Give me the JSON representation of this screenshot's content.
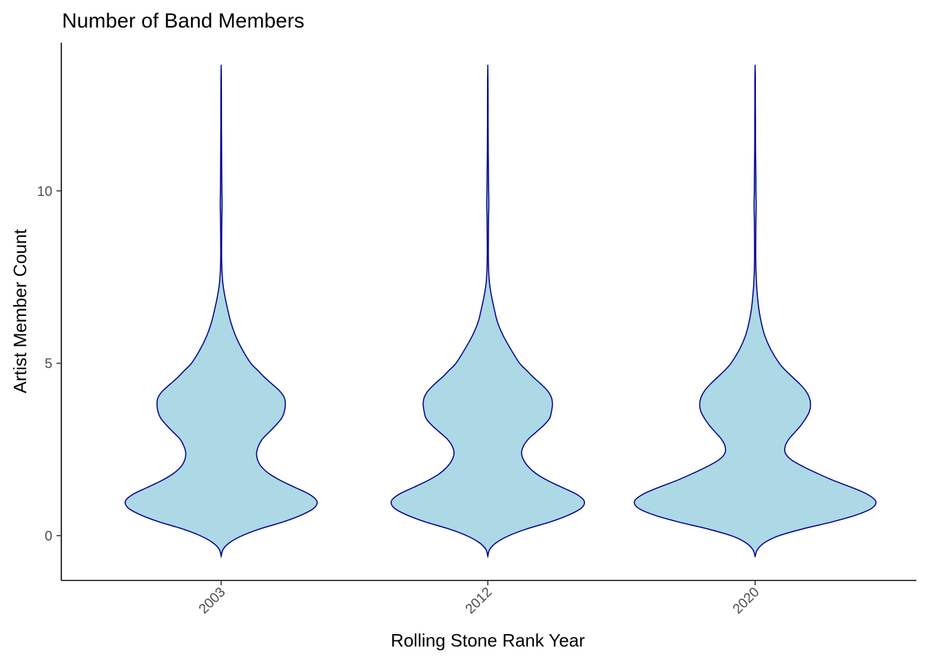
{
  "chart_data": {
    "type": "violin",
    "title": "Number of Band Members",
    "xlabel": "Rolling Stone Rank Year",
    "ylabel": "Artist Member Count",
    "categories": [
      "2003",
      "2012",
      "2020"
    ],
    "y_ticks": [
      0,
      5,
      10
    ],
    "ylim": [
      -1.3,
      14.3
    ],
    "grid": false,
    "legend": "none",
    "colors": {
      "fill": "#add8e6",
      "outline": "#00008b"
    },
    "density_profiles": [
      {
        "category": "2003",
        "y": [
          -0.6,
          -0.4,
          -0.2,
          0,
          0.2,
          0.4,
          0.6,
          0.8,
          1,
          1.2,
          1.4,
          1.6,
          1.8,
          2,
          2.2,
          2.4,
          2.6,
          2.8,
          3,
          3.2,
          3.4,
          3.6,
          3.8,
          4,
          4.2,
          4.4,
          4.6,
          4.8,
          5,
          5.4,
          5.8,
          6.2,
          6.6,
          7,
          7.4,
          8,
          8.6,
          9.2,
          9.6,
          10,
          10.5,
          11,
          11.5,
          12,
          12.6,
          13.2,
          13.6
        ],
        "relative_width": [
          0.0,
          0.02,
          0.09,
          0.22,
          0.41,
          0.65,
          0.84,
          0.97,
          1.0,
          0.92,
          0.77,
          0.62,
          0.5,
          0.42,
          0.38,
          0.37,
          0.39,
          0.43,
          0.5,
          0.57,
          0.63,
          0.66,
          0.67,
          0.66,
          0.61,
          0.53,
          0.45,
          0.38,
          0.31,
          0.22,
          0.15,
          0.1,
          0.065,
          0.035,
          0.015,
          0.005,
          0.005,
          0.007,
          0.01,
          0.008,
          0.006,
          0.005,
          0.004,
          0.003,
          0.003,
          0.002,
          0.0
        ]
      },
      {
        "category": "2012",
        "y": [
          -0.6,
          -0.4,
          -0.2,
          0,
          0.2,
          0.4,
          0.6,
          0.8,
          1,
          1.2,
          1.4,
          1.6,
          1.8,
          2,
          2.2,
          2.4,
          2.6,
          2.8,
          3,
          3.2,
          3.4,
          3.6,
          3.8,
          4,
          4.2,
          4.4,
          4.6,
          4.8,
          5,
          5.4,
          5.8,
          6.2,
          6.6,
          7,
          7.4,
          8,
          8.6,
          9.2,
          9.6,
          10,
          10.5,
          11,
          11.5,
          12,
          12.6,
          13.2,
          13.6
        ],
        "relative_width": [
          0.0,
          0.02,
          0.09,
          0.22,
          0.41,
          0.65,
          0.84,
          0.97,
          1.0,
          0.92,
          0.77,
          0.62,
          0.5,
          0.42,
          0.37,
          0.35,
          0.37,
          0.42,
          0.5,
          0.58,
          0.64,
          0.66,
          0.67,
          0.66,
          0.62,
          0.55,
          0.47,
          0.4,
          0.33,
          0.24,
          0.16,
          0.1,
          0.065,
          0.035,
          0.015,
          0.006,
          0.006,
          0.008,
          0.011,
          0.009,
          0.007,
          0.005,
          0.004,
          0.003,
          0.003,
          0.002,
          0.0
        ]
      },
      {
        "category": "2020",
        "y": [
          -0.6,
          -0.4,
          -0.2,
          0,
          0.2,
          0.4,
          0.6,
          0.8,
          1,
          1.2,
          1.4,
          1.6,
          1.8,
          2,
          2.2,
          2.4,
          2.6,
          2.8,
          3,
          3.2,
          3.4,
          3.6,
          3.8,
          4,
          4.2,
          4.4,
          4.6,
          4.8,
          5,
          5.4,
          5.8,
          6.2,
          6.6,
          7,
          7.4,
          8,
          8.6,
          9.2,
          9.6,
          10,
          10.5,
          11,
          11.5,
          12,
          12.6,
          13.2,
          13.6
        ],
        "relative_width": [
          0.0,
          0.02,
          0.08,
          0.2,
          0.4,
          0.64,
          0.84,
          0.97,
          1.0,
          0.93,
          0.8,
          0.65,
          0.52,
          0.4,
          0.3,
          0.25,
          0.25,
          0.28,
          0.33,
          0.38,
          0.42,
          0.45,
          0.46,
          0.45,
          0.42,
          0.37,
          0.31,
          0.25,
          0.2,
          0.13,
          0.08,
          0.05,
          0.03,
          0.018,
          0.01,
          0.005,
          0.005,
          0.007,
          0.009,
          0.007,
          0.006,
          0.004,
          0.003,
          0.003,
          0.002,
          0.002,
          0.0
        ]
      }
    ]
  }
}
